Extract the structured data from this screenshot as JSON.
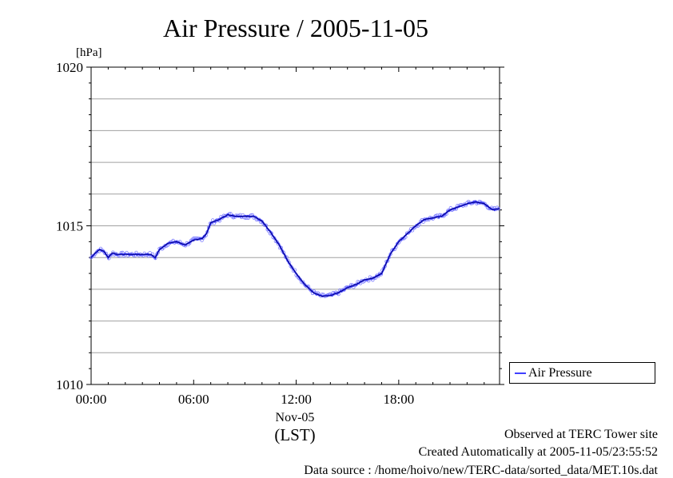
{
  "chart_data": {
    "type": "line",
    "title": "Air Pressure / 2005-11-05",
    "ylabel": "[hPa]",
    "xlabel": "(LST)",
    "date_label": "Nov-05",
    "ylim": [
      1010,
      1020
    ],
    "xlim_hours": [
      0,
      23.9
    ],
    "y_ticks": [
      "1010",
      "1015",
      "1020"
    ],
    "x_ticks": [
      {
        "hour": 0,
        "label": "00:00"
      },
      {
        "hour": 6,
        "label": "06:00"
      },
      {
        "hour": 12,
        "label": "12:00"
      },
      {
        "hour": 18,
        "label": "18:00"
      }
    ],
    "grid": true,
    "legend_position": "right",
    "series": [
      {
        "name": "Air Pressure",
        "color": "#4040ff",
        "x_hours": [
          0.0,
          0.25,
          0.5,
          0.75,
          1.0,
          1.25,
          1.5,
          2.0,
          2.5,
          3.0,
          3.5,
          3.75,
          4.0,
          4.5,
          5.0,
          5.5,
          6.0,
          6.5,
          6.75,
          7.0,
          7.5,
          8.0,
          8.5,
          9.0,
          9.5,
          10.0,
          10.5,
          11.0,
          11.5,
          12.0,
          12.5,
          13.0,
          13.5,
          14.0,
          14.5,
          15.0,
          15.5,
          16.0,
          16.5,
          17.0,
          17.5,
          18.0,
          18.5,
          19.0,
          19.5,
          20.0,
          20.5,
          21.0,
          21.5,
          22.0,
          22.5,
          23.0,
          23.5,
          23.9
        ],
        "values": [
          1014.0,
          1014.15,
          1014.25,
          1014.2,
          1014.0,
          1014.15,
          1014.1,
          1014.1,
          1014.1,
          1014.1,
          1014.1,
          1014.0,
          1014.25,
          1014.45,
          1014.5,
          1014.4,
          1014.55,
          1014.6,
          1014.75,
          1015.1,
          1015.2,
          1015.35,
          1015.3,
          1015.3,
          1015.3,
          1015.15,
          1014.8,
          1014.4,
          1013.9,
          1013.5,
          1013.15,
          1012.9,
          1012.78,
          1012.8,
          1012.9,
          1013.05,
          1013.15,
          1013.3,
          1013.35,
          1013.5,
          1014.1,
          1014.5,
          1014.75,
          1015.0,
          1015.2,
          1015.25,
          1015.3,
          1015.5,
          1015.6,
          1015.7,
          1015.75,
          1015.7,
          1015.5,
          1015.55
        ]
      }
    ]
  },
  "footer": {
    "observed": "Observed at TERC Tower site",
    "created": "Created Automatically at 2005-11-05/23:55:52",
    "source": "Data source : /home/hoivo/new/TERC-data/sorted_data/MET.10s.dat"
  }
}
